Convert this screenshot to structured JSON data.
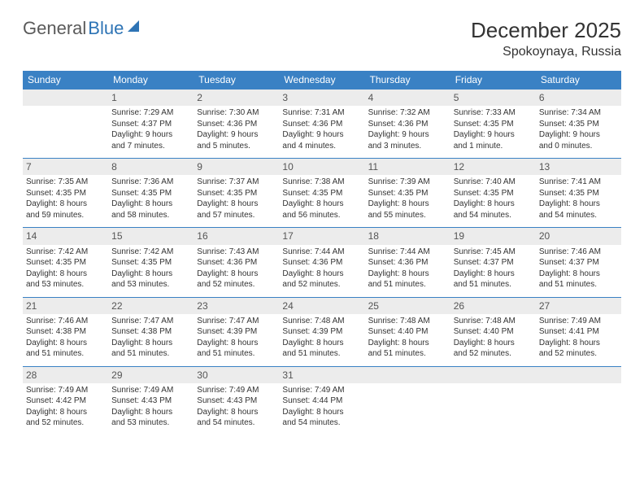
{
  "logo": {
    "part1": "General",
    "part2": "Blue"
  },
  "title": "December 2025",
  "location": "Spokoynaya, Russia",
  "colors": {
    "header_bg": "#3a81c4",
    "header_text": "#ffffff",
    "daynum_bg": "#ececec",
    "border": "#3a81c4",
    "accent": "#2e74b5"
  },
  "dayNames": [
    "Sunday",
    "Monday",
    "Tuesday",
    "Wednesday",
    "Thursday",
    "Friday",
    "Saturday"
  ],
  "weeks": [
    [
      {
        "n": "",
        "lines": [
          "",
          "",
          "",
          ""
        ]
      },
      {
        "n": "1",
        "lines": [
          "Sunrise: 7:29 AM",
          "Sunset: 4:37 PM",
          "Daylight: 9 hours",
          "and 7 minutes."
        ]
      },
      {
        "n": "2",
        "lines": [
          "Sunrise: 7:30 AM",
          "Sunset: 4:36 PM",
          "Daylight: 9 hours",
          "and 5 minutes."
        ]
      },
      {
        "n": "3",
        "lines": [
          "Sunrise: 7:31 AM",
          "Sunset: 4:36 PM",
          "Daylight: 9 hours",
          "and 4 minutes."
        ]
      },
      {
        "n": "4",
        "lines": [
          "Sunrise: 7:32 AM",
          "Sunset: 4:36 PM",
          "Daylight: 9 hours",
          "and 3 minutes."
        ]
      },
      {
        "n": "5",
        "lines": [
          "Sunrise: 7:33 AM",
          "Sunset: 4:35 PM",
          "Daylight: 9 hours",
          "and 1 minute."
        ]
      },
      {
        "n": "6",
        "lines": [
          "Sunrise: 7:34 AM",
          "Sunset: 4:35 PM",
          "Daylight: 9 hours",
          "and 0 minutes."
        ]
      }
    ],
    [
      {
        "n": "7",
        "lines": [
          "Sunrise: 7:35 AM",
          "Sunset: 4:35 PM",
          "Daylight: 8 hours",
          "and 59 minutes."
        ]
      },
      {
        "n": "8",
        "lines": [
          "Sunrise: 7:36 AM",
          "Sunset: 4:35 PM",
          "Daylight: 8 hours",
          "and 58 minutes."
        ]
      },
      {
        "n": "9",
        "lines": [
          "Sunrise: 7:37 AM",
          "Sunset: 4:35 PM",
          "Daylight: 8 hours",
          "and 57 minutes."
        ]
      },
      {
        "n": "10",
        "lines": [
          "Sunrise: 7:38 AM",
          "Sunset: 4:35 PM",
          "Daylight: 8 hours",
          "and 56 minutes."
        ]
      },
      {
        "n": "11",
        "lines": [
          "Sunrise: 7:39 AM",
          "Sunset: 4:35 PM",
          "Daylight: 8 hours",
          "and 55 minutes."
        ]
      },
      {
        "n": "12",
        "lines": [
          "Sunrise: 7:40 AM",
          "Sunset: 4:35 PM",
          "Daylight: 8 hours",
          "and 54 minutes."
        ]
      },
      {
        "n": "13",
        "lines": [
          "Sunrise: 7:41 AM",
          "Sunset: 4:35 PM",
          "Daylight: 8 hours",
          "and 54 minutes."
        ]
      }
    ],
    [
      {
        "n": "14",
        "lines": [
          "Sunrise: 7:42 AM",
          "Sunset: 4:35 PM",
          "Daylight: 8 hours",
          "and 53 minutes."
        ]
      },
      {
        "n": "15",
        "lines": [
          "Sunrise: 7:42 AM",
          "Sunset: 4:35 PM",
          "Daylight: 8 hours",
          "and 53 minutes."
        ]
      },
      {
        "n": "16",
        "lines": [
          "Sunrise: 7:43 AM",
          "Sunset: 4:36 PM",
          "Daylight: 8 hours",
          "and 52 minutes."
        ]
      },
      {
        "n": "17",
        "lines": [
          "Sunrise: 7:44 AM",
          "Sunset: 4:36 PM",
          "Daylight: 8 hours",
          "and 52 minutes."
        ]
      },
      {
        "n": "18",
        "lines": [
          "Sunrise: 7:44 AM",
          "Sunset: 4:36 PM",
          "Daylight: 8 hours",
          "and 51 minutes."
        ]
      },
      {
        "n": "19",
        "lines": [
          "Sunrise: 7:45 AM",
          "Sunset: 4:37 PM",
          "Daylight: 8 hours",
          "and 51 minutes."
        ]
      },
      {
        "n": "20",
        "lines": [
          "Sunrise: 7:46 AM",
          "Sunset: 4:37 PM",
          "Daylight: 8 hours",
          "and 51 minutes."
        ]
      }
    ],
    [
      {
        "n": "21",
        "lines": [
          "Sunrise: 7:46 AM",
          "Sunset: 4:38 PM",
          "Daylight: 8 hours",
          "and 51 minutes."
        ]
      },
      {
        "n": "22",
        "lines": [
          "Sunrise: 7:47 AM",
          "Sunset: 4:38 PM",
          "Daylight: 8 hours",
          "and 51 minutes."
        ]
      },
      {
        "n": "23",
        "lines": [
          "Sunrise: 7:47 AM",
          "Sunset: 4:39 PM",
          "Daylight: 8 hours",
          "and 51 minutes."
        ]
      },
      {
        "n": "24",
        "lines": [
          "Sunrise: 7:48 AM",
          "Sunset: 4:39 PM",
          "Daylight: 8 hours",
          "and 51 minutes."
        ]
      },
      {
        "n": "25",
        "lines": [
          "Sunrise: 7:48 AM",
          "Sunset: 4:40 PM",
          "Daylight: 8 hours",
          "and 51 minutes."
        ]
      },
      {
        "n": "26",
        "lines": [
          "Sunrise: 7:48 AM",
          "Sunset: 4:40 PM",
          "Daylight: 8 hours",
          "and 52 minutes."
        ]
      },
      {
        "n": "27",
        "lines": [
          "Sunrise: 7:49 AM",
          "Sunset: 4:41 PM",
          "Daylight: 8 hours",
          "and 52 minutes."
        ]
      }
    ],
    [
      {
        "n": "28",
        "lines": [
          "Sunrise: 7:49 AM",
          "Sunset: 4:42 PM",
          "Daylight: 8 hours",
          "and 52 minutes."
        ]
      },
      {
        "n": "29",
        "lines": [
          "Sunrise: 7:49 AM",
          "Sunset: 4:43 PM",
          "Daylight: 8 hours",
          "and 53 minutes."
        ]
      },
      {
        "n": "30",
        "lines": [
          "Sunrise: 7:49 AM",
          "Sunset: 4:43 PM",
          "Daylight: 8 hours",
          "and 54 minutes."
        ]
      },
      {
        "n": "31",
        "lines": [
          "Sunrise: 7:49 AM",
          "Sunset: 4:44 PM",
          "Daylight: 8 hours",
          "and 54 minutes."
        ]
      },
      {
        "n": "",
        "lines": [
          "",
          "",
          "",
          ""
        ]
      },
      {
        "n": "",
        "lines": [
          "",
          "",
          "",
          ""
        ]
      },
      {
        "n": "",
        "lines": [
          "",
          "",
          "",
          ""
        ]
      }
    ]
  ]
}
